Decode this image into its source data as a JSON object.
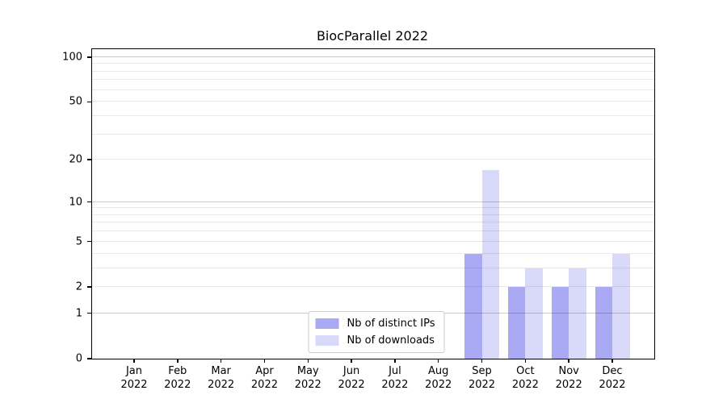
{
  "figure": {
    "background": "#ffffff"
  },
  "chart_data": {
    "type": "bar",
    "title": "BiocParallel 2022",
    "scale": "log1p",
    "grid": true,
    "categories": [
      {
        "l1": "Jan",
        "l2": "2022"
      },
      {
        "l1": "Feb",
        "l2": "2022"
      },
      {
        "l1": "Mar",
        "l2": "2022"
      },
      {
        "l1": "Apr",
        "l2": "2022"
      },
      {
        "l1": "May",
        "l2": "2022"
      },
      {
        "l1": "Jun",
        "l2": "2022"
      },
      {
        "l1": "Jul",
        "l2": "2022"
      },
      {
        "l1": "Aug",
        "l2": "2022"
      },
      {
        "l1": "Sep",
        "l2": "2022"
      },
      {
        "l1": "Oct",
        "l2": "2022"
      },
      {
        "l1": "Nov",
        "l2": "2022"
      },
      {
        "l1": "Dec",
        "l2": "2022"
      }
    ],
    "series": [
      {
        "name": "Nb of distinct IPs",
        "color": "#a9a9f4",
        "values": [
          0,
          0,
          0,
          0,
          0,
          0,
          0,
          0,
          4,
          2,
          2,
          2
        ]
      },
      {
        "name": "Nb of downloads",
        "color": "#d9d9f9",
        "values": [
          0,
          0,
          0,
          0,
          0,
          0,
          0,
          0,
          17,
          3,
          3,
          4
        ]
      }
    ],
    "y_ticks": [
      0,
      1,
      2,
      5,
      10,
      20,
      50,
      100
    ],
    "y_major_gridlines": [
      1,
      10,
      100
    ],
    "y_minor_gridlines": [
      2,
      3,
      4,
      5,
      6,
      7,
      8,
      9,
      20,
      30,
      40,
      50,
      60,
      70,
      80,
      90
    ],
    "ylim": [
      0,
      113
    ],
    "xlabel": "",
    "ylabel": "",
    "legend": {
      "position": "lower center"
    }
  }
}
